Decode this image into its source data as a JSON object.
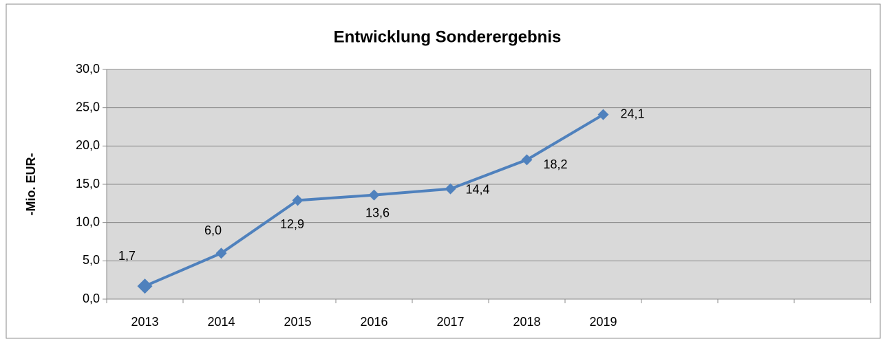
{
  "chart_data": {
    "type": "line",
    "title": "Entwicklung Sonderergebnis",
    "y_label": "-Mio. EUR-",
    "categories": [
      "2013",
      "2014",
      "2015",
      "2016",
      "2017",
      "2018",
      "2019",
      null,
      null,
      null
    ],
    "series": [
      {
        "name": "Sonderergebnis",
        "color": "#4f81bd",
        "values": [
          1.7,
          6.0,
          12.9,
          13.6,
          14.4,
          18.2,
          24.1,
          null,
          null,
          null
        ],
        "value_labels": [
          "1,7",
          "6,0",
          "12,9",
          "13,6",
          "14,4",
          "18,2",
          "24,1",
          null,
          null,
          null
        ]
      }
    ],
    "ylim": [
      0,
      30
    ],
    "yticks": [
      {
        "value": 0,
        "label": "0,0"
      },
      {
        "value": 5,
        "label": "5,0"
      },
      {
        "value": 10,
        "label": "10,0"
      },
      {
        "value": 15,
        "label": "15,0"
      },
      {
        "value": 20,
        "label": "20,0"
      },
      {
        "value": 25,
        "label": "25,0"
      },
      {
        "value": 30,
        "label": "30,0"
      }
    ],
    "grid": true
  }
}
